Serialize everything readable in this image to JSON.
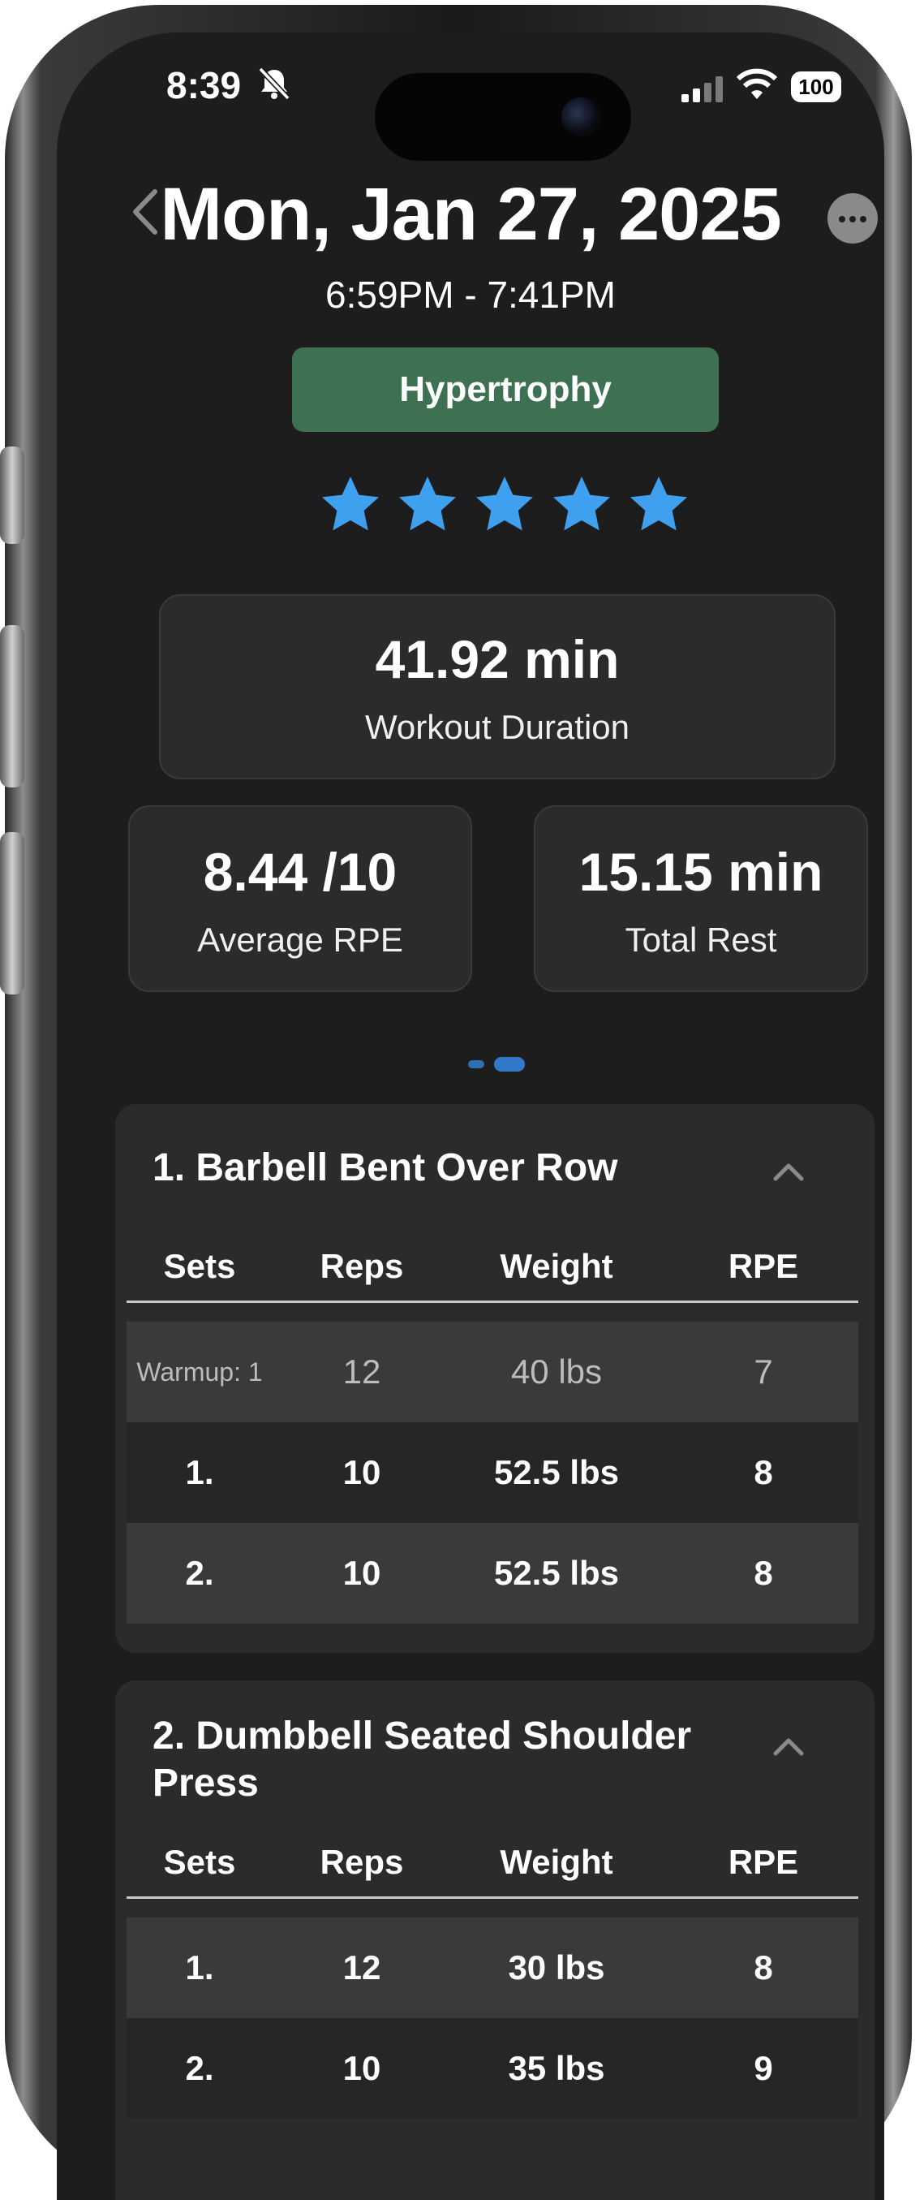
{
  "status_bar": {
    "time": "8:39",
    "battery": "100"
  },
  "header": {
    "title": "Mon, Jan 27, 2025",
    "time_range": "6:59PM - 7:41PM",
    "workout_type": "Hypertrophy",
    "rating": 5,
    "rating_max": 5
  },
  "stats": {
    "duration": {
      "value": "41.92 min",
      "label": "Workout Duration"
    },
    "rpe": {
      "value": "8.44 /10",
      "label": "Average RPE"
    },
    "rest": {
      "value": "15.15 min",
      "label": "Total Rest"
    }
  },
  "pagination": {
    "pages": 2,
    "active": 1
  },
  "columns": {
    "sets": "Sets",
    "reps": "Reps",
    "weight": "Weight",
    "rpe": "RPE"
  },
  "exercises": [
    {
      "title": "1. Barbell Bent Over Row",
      "rows": [
        {
          "set": "Warmup: 1",
          "reps": "12",
          "weight": "40 lbs",
          "rpe": "7"
        },
        {
          "set": "1.",
          "reps": "10",
          "weight": "52.5 lbs",
          "rpe": "8"
        },
        {
          "set": "2.",
          "reps": "10",
          "weight": "52.5 lbs",
          "rpe": "8"
        }
      ]
    },
    {
      "title_line1": "2. Dumbbell Seated Shoulder",
      "title_line2": "Press",
      "rows": [
        {
          "set": "1.",
          "reps": "12",
          "weight": "30 lbs",
          "rpe": "8"
        },
        {
          "set": "2.",
          "reps": "10",
          "weight": "35 lbs",
          "rpe": "9"
        }
      ]
    }
  ],
  "colors": {
    "background": "#1d1d1d",
    "card": "#2b2b2b",
    "accent_green": "#3e7152",
    "star_blue": "#3fa0f0"
  }
}
